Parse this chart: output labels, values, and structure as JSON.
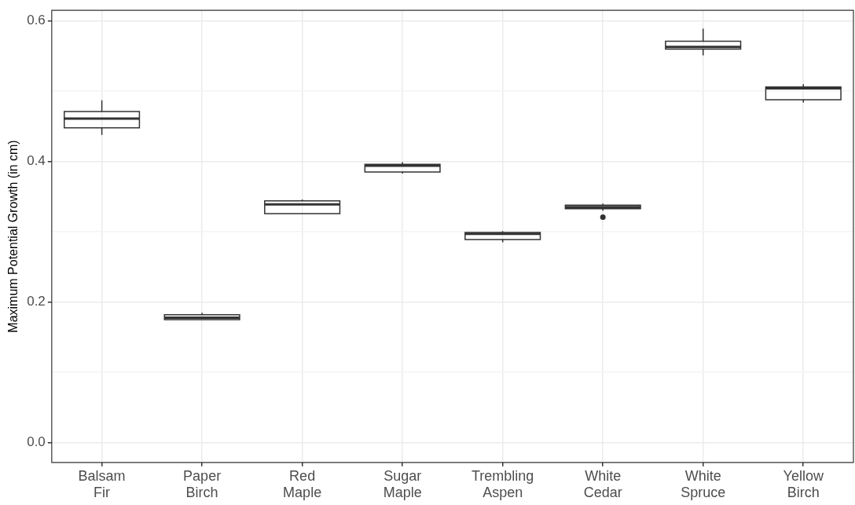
{
  "chart_data": {
    "type": "box",
    "ylabel": "Maximum Potential Growth (in cm)",
    "categories": [
      "Balsam Fir",
      "Paper Birch",
      "Red Maple",
      "Sugar Maple",
      "Trembling Aspen",
      "White Cedar",
      "White Spruce",
      "Yellow Birch"
    ],
    "color": "#333333",
    "boxes": [
      {
        "low": 0.438,
        "q1": 0.448,
        "median": 0.461,
        "q3": 0.471,
        "high": 0.487
      },
      {
        "low": 0.175,
        "q1": 0.175,
        "median": 0.178,
        "q3": 0.182,
        "high": 0.185
      },
      {
        "low": 0.326,
        "q1": 0.326,
        "median": 0.339,
        "q3": 0.344,
        "high": 0.346
      },
      {
        "low": 0.383,
        "q1": 0.385,
        "median": 0.394,
        "q3": 0.396,
        "high": 0.399
      },
      {
        "low": 0.285,
        "q1": 0.289,
        "median": 0.297,
        "q3": 0.299,
        "high": 0.301
      },
      {
        "low": 0.33,
        "q1": 0.333,
        "median": 0.335,
        "q3": 0.338,
        "high": 0.34,
        "outliers": [
          0.321
        ]
      },
      {
        "low": 0.551,
        "q1": 0.56,
        "median": 0.563,
        "q3": 0.571,
        "high": 0.589
      },
      {
        "low": 0.484,
        "q1": 0.488,
        "median": 0.504,
        "q3": 0.506,
        "high": 0.51
      }
    ],
    "ylim": [
      -0.028,
      0.615
    ],
    "yticks": [
      {
        "value": 0,
        "label": "0.0"
      },
      {
        "value": 0.1,
        "label": null
      },
      {
        "value": 0.2,
        "label": "0.2"
      },
      {
        "value": 0.3,
        "label": null
      },
      {
        "value": 0.4,
        "label": "0.4"
      },
      {
        "value": 0.5,
        "label": null
      },
      {
        "value": 0.6,
        "label": "0.6"
      }
    ],
    "grid": true,
    "legend": false
  }
}
